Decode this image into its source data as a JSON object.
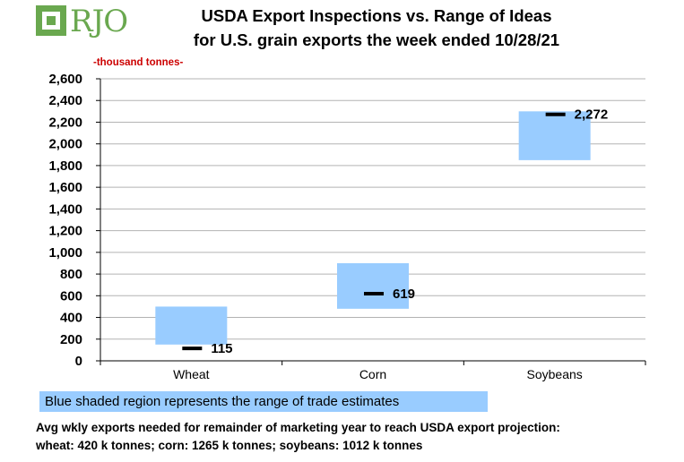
{
  "logo": {
    "text": "RJO"
  },
  "title_line1": "USDA Export Inspections vs. Range of Ideas",
  "title_line2": "for U.S. grain exports the week ended 10/28/21",
  "units_label": "-thousand  tonnes-",
  "legend_text": "Blue shaded region represents the range of trade estimates",
  "footnote_line1": "Avg wkly exports needed for remainder of marketing year to reach USDA export projection:",
  "footnote_line2": "wheat: 420 k tonnes; corn: 1265 k tonnes; soybeans: 1012 k tonnes",
  "colors": {
    "range_fill": "#99ccff",
    "marker": "#000000",
    "units": "#cc0000",
    "logo": "#6aa84f"
  },
  "chart_data": {
    "type": "bar",
    "title": "USDA Export Inspections vs. Range of Ideas for U.S. grain exports the week ended 10/28/21",
    "ylabel": "thousand tonnes",
    "ylim": [
      0,
      2600
    ],
    "yticks": [
      0,
      200,
      400,
      600,
      800,
      1000,
      1200,
      1400,
      1600,
      1800,
      2000,
      2200,
      2400,
      2600
    ],
    "ytick_labels": [
      "0",
      "200",
      "400",
      "600",
      "800",
      "1,000",
      "1,200",
      "1,400",
      "1,600",
      "1,800",
      "2,000",
      "2,200",
      "2,400",
      "2,600"
    ],
    "grid": true,
    "categories": [
      "Wheat",
      "Corn",
      "Soybeans"
    ],
    "range_low": [
      150,
      480,
      1850
    ],
    "range_high": [
      500,
      900,
      2300
    ],
    "actual": [
      115,
      619,
      2272
    ],
    "actual_labels": [
      "115",
      "619",
      "2,272"
    ]
  }
}
